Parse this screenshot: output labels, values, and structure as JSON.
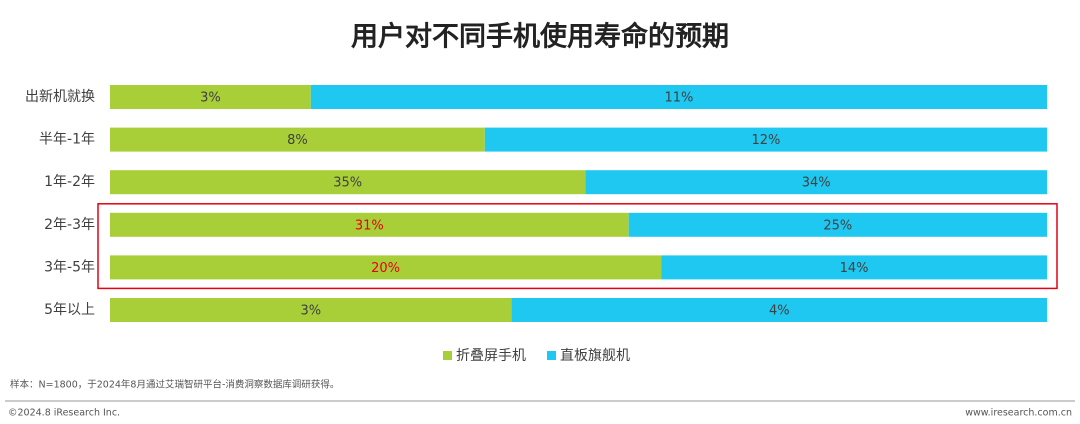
{
  "chart_data": {
    "type": "stacked-share-bar",
    "title": "用户对不同手机使用寿命的预期",
    "categories": [
      "出新机就换",
      "半年-1年",
      "1年-2年",
      "2年-3年",
      "3年-5年",
      "5年以上"
    ],
    "series": [
      {
        "name": "折叠屏手机",
        "color": "#a9cf38",
        "values": [
          3,
          8,
          35,
          31,
          20,
          3
        ],
        "value_labels": [
          "3%",
          "8%",
          "35%",
          "31%",
          "20%",
          "3%"
        ]
      },
      {
        "name": "直板旗舰机",
        "color": "#1fc8f0",
        "values": [
          11,
          12,
          34,
          25,
          14,
          4
        ],
        "value_labels": [
          "11%",
          "12%",
          "34%",
          "25%",
          "14%",
          "4%"
        ]
      }
    ],
    "highlight_categories": [
      3,
      4
    ],
    "highlight_color": "#e60012",
    "footnote": "样本：N=1800，于2024年8月通过艾瑞智研平台-消费洞察数据库调研获得。",
    "copyright": "©2024.8 iResearch Inc.",
    "website": "www.iresearch.com.cn"
  }
}
